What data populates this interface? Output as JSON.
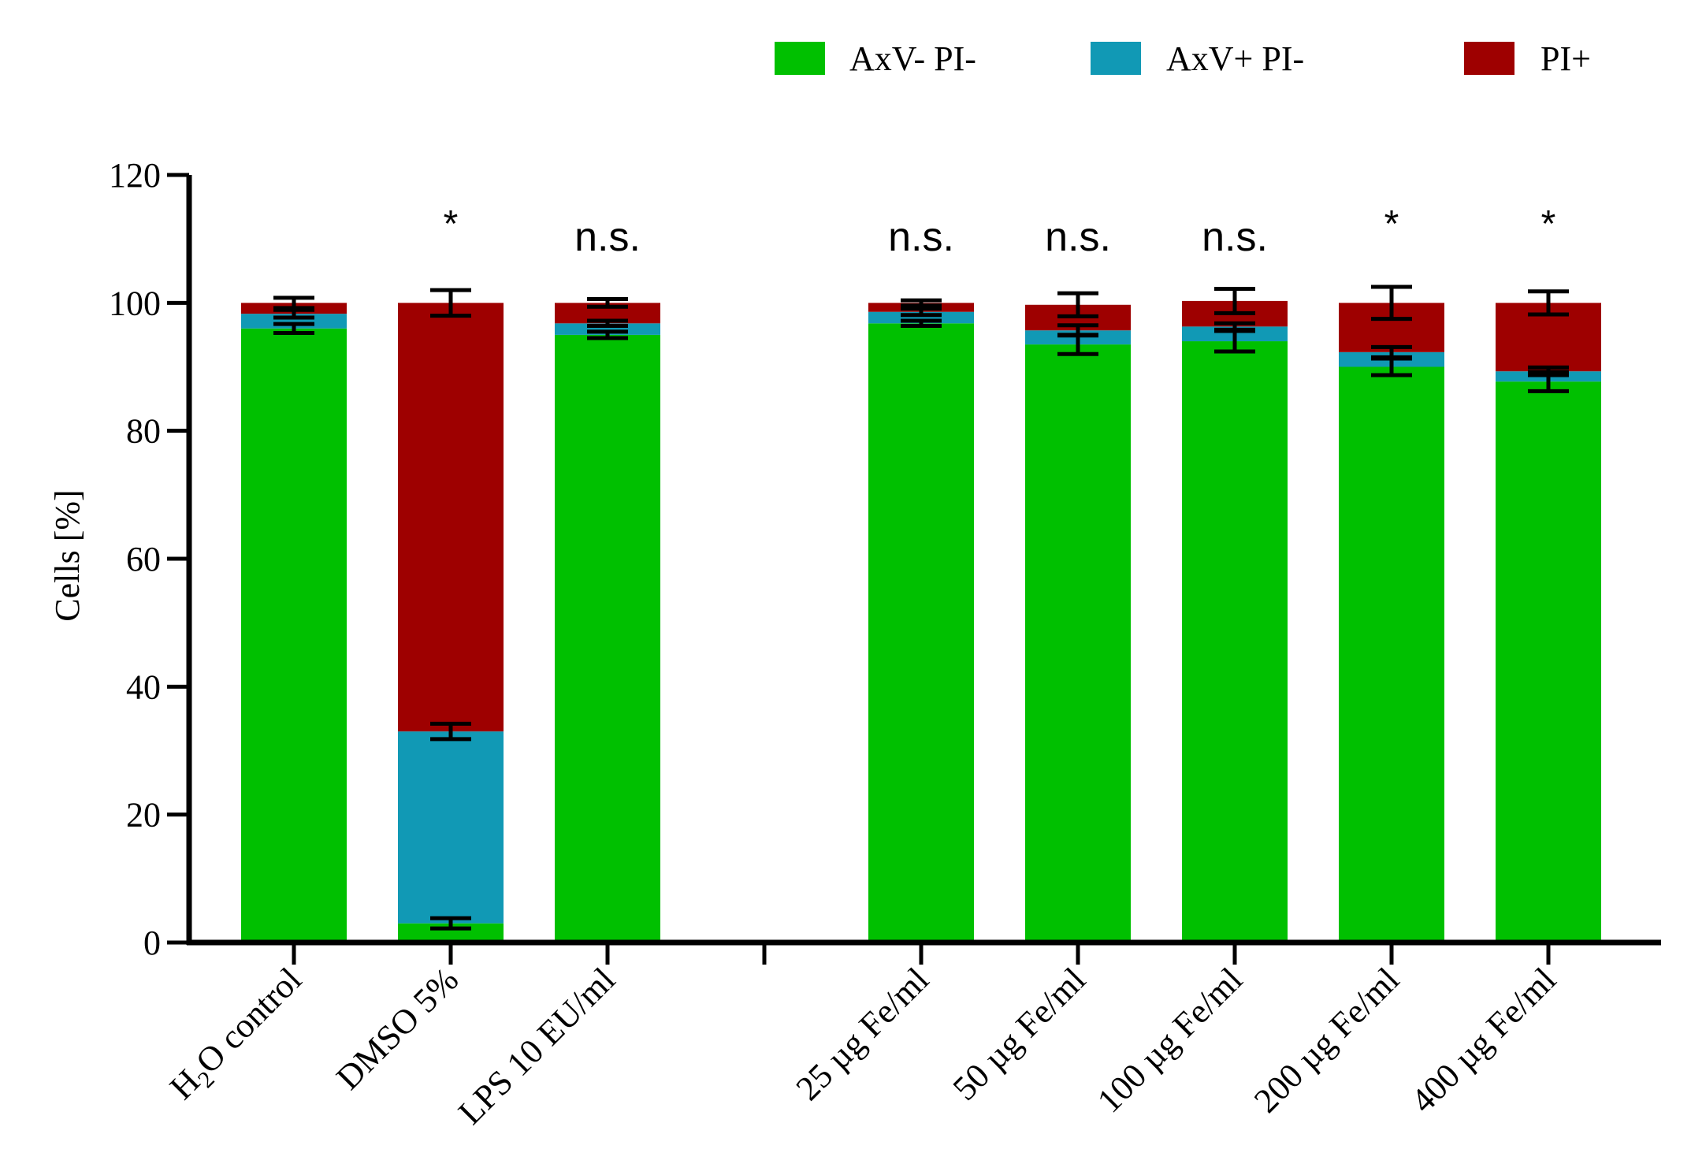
{
  "chart_data": {
    "type": "bar",
    "stacked": true,
    "ylabel": "Cells [%]",
    "ylim": [
      0,
      120
    ],
    "yticks": [
      "0",
      "20",
      "40",
      "60",
      "80",
      "100",
      "120"
    ],
    "colors": {
      "AxV- PI-": "#00c000",
      "AxV+ PI-": "#1199b5",
      "PI+": "#9e0000"
    },
    "legend": [
      {
        "label": "AxV- PI-",
        "color": "#00c000"
      },
      {
        "label": "AxV+ PI-",
        "color": "#1199b5"
      },
      {
        "label": "PI+",
        "color": "#9e0000"
      }
    ],
    "categories": [
      {
        "label": "H2O control",
        "sub": "2",
        "significance": "",
        "values": [
          96,
          2.3,
          1.7
        ],
        "errors": [
          0.7,
          0.6,
          0.8
        ]
      },
      {
        "label": "DMSO 5%",
        "significance": "*",
        "values": [
          3,
          30,
          67
        ],
        "errors": [
          0.8,
          1.2,
          2.0
        ]
      },
      {
        "label": "LPS 10 EU/ml",
        "significance": "n.s.",
        "values": [
          95,
          1.8,
          3.2
        ],
        "errors": [
          0.5,
          0.4,
          0.6
        ]
      },
      {
        "label": "",
        "gap": true
      },
      {
        "label": "25 µg Fe/ml",
        "significance": "n.s.",
        "values": [
          96.8,
          1.8,
          1.4
        ],
        "errors": [
          0.4,
          0.5,
          0.4
        ]
      },
      {
        "label": "50 µg Fe/ml",
        "significance": "n.s.",
        "values": [
          93.5,
          2.2,
          4
        ],
        "errors": [
          1.5,
          0.8,
          1.8
        ]
      },
      {
        "label": "100 µg Fe/ml",
        "significance": "n.s.",
        "values": [
          94,
          2.3,
          4
        ],
        "errors": [
          1.6,
          0.5,
          1.9
        ]
      },
      {
        "label": "200 µg Fe/ml",
        "significance": "*",
        "values": [
          90,
          2.3,
          7.7
        ],
        "errors": [
          1.3,
          0.8,
          2.5
        ]
      },
      {
        "label": "400 µg Fe/ml",
        "significance": "*",
        "values": [
          87.7,
          1.6,
          10.7
        ],
        "errors": [
          1.5,
          0.6,
          1.8
        ]
      }
    ]
  }
}
